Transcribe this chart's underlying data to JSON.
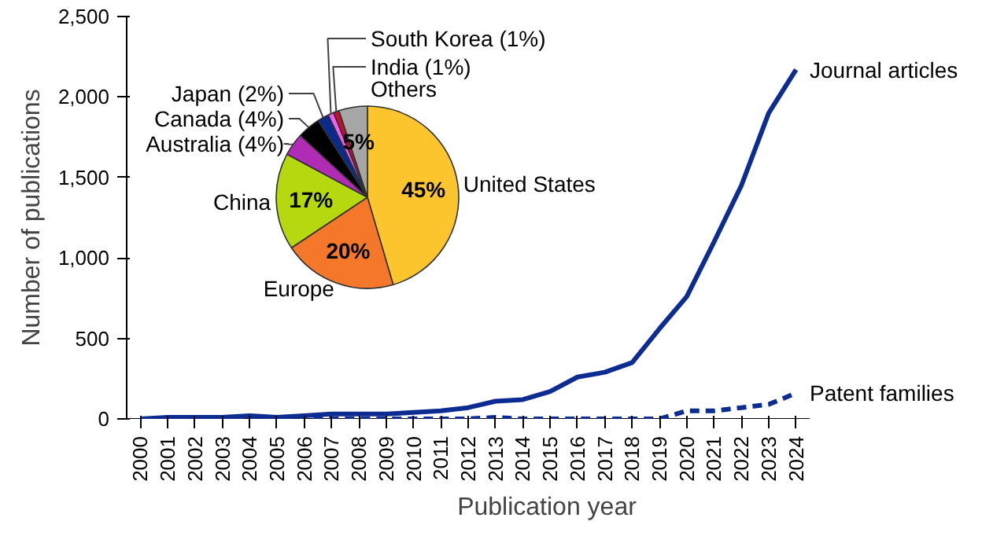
{
  "chart_data": [
    {
      "type": "line",
      "xlabel": "Publication year",
      "ylabel": "Number of publications",
      "categories": [
        "2000",
        "2001",
        "2002",
        "2003",
        "2004",
        "2005",
        "2006",
        "2007",
        "2008",
        "2009",
        "2010",
        "2011",
        "2012",
        "2013",
        "2014",
        "2015",
        "2016",
        "2017",
        "2018",
        "2019",
        "2020",
        "2021",
        "2022",
        "2023",
        "2024"
      ],
      "series": [
        {
          "name": "Journal articles",
          "color": "#0d2c91",
          "line_style": "solid",
          "values": [
            0,
            10,
            10,
            10,
            20,
            10,
            20,
            30,
            30,
            30,
            40,
            50,
            70,
            110,
            120,
            170,
            260,
            290,
            350,
            560,
            760,
            1100,
            1450,
            1900,
            2170
          ]
        },
        {
          "name": "Patent families",
          "color": "#0d2c91",
          "line_style": "dashed",
          "values": [
            0,
            0,
            0,
            0,
            0,
            0,
            0,
            0,
            0,
            0,
            0,
            0,
            0,
            10,
            0,
            0,
            0,
            0,
            0,
            0,
            50,
            50,
            70,
            90,
            160
          ]
        }
      ],
      "ylim": [
        0,
        2500
      ],
      "yticks": [
        0,
        {
          "value": 500,
          "label": "500"
        },
        {
          "value": 1000,
          "label": "1,000"
        },
        {
          "value": 1500,
          "label": "1,500"
        },
        {
          "value": 2000,
          "label": "2,000"
        },
        {
          "value": 2500,
          "label": "2,500"
        }
      ],
      "grid": false,
      "legend": false
    },
    {
      "type": "pie",
      "categories": [
        "United States",
        "Europe",
        "China",
        "Australia",
        "Canada",
        "Japan",
        "South Korea",
        "India",
        "Others"
      ],
      "values": [
        45,
        20,
        17,
        4,
        4,
        2,
        1,
        1,
        5
      ],
      "value_labels": [
        "45%",
        "20%",
        "17%",
        "(4%)",
        "(4%)",
        "(2%)",
        "(1%)",
        "(1%)",
        "5%"
      ],
      "colors": [
        "#fcc52e",
        "#f5782a",
        "#b5d80e",
        "#b02cb4",
        "#000000",
        "#0a2a8c",
        "#f25ef0",
        "#c0102a",
        "#a6a6a6"
      ]
    }
  ]
}
